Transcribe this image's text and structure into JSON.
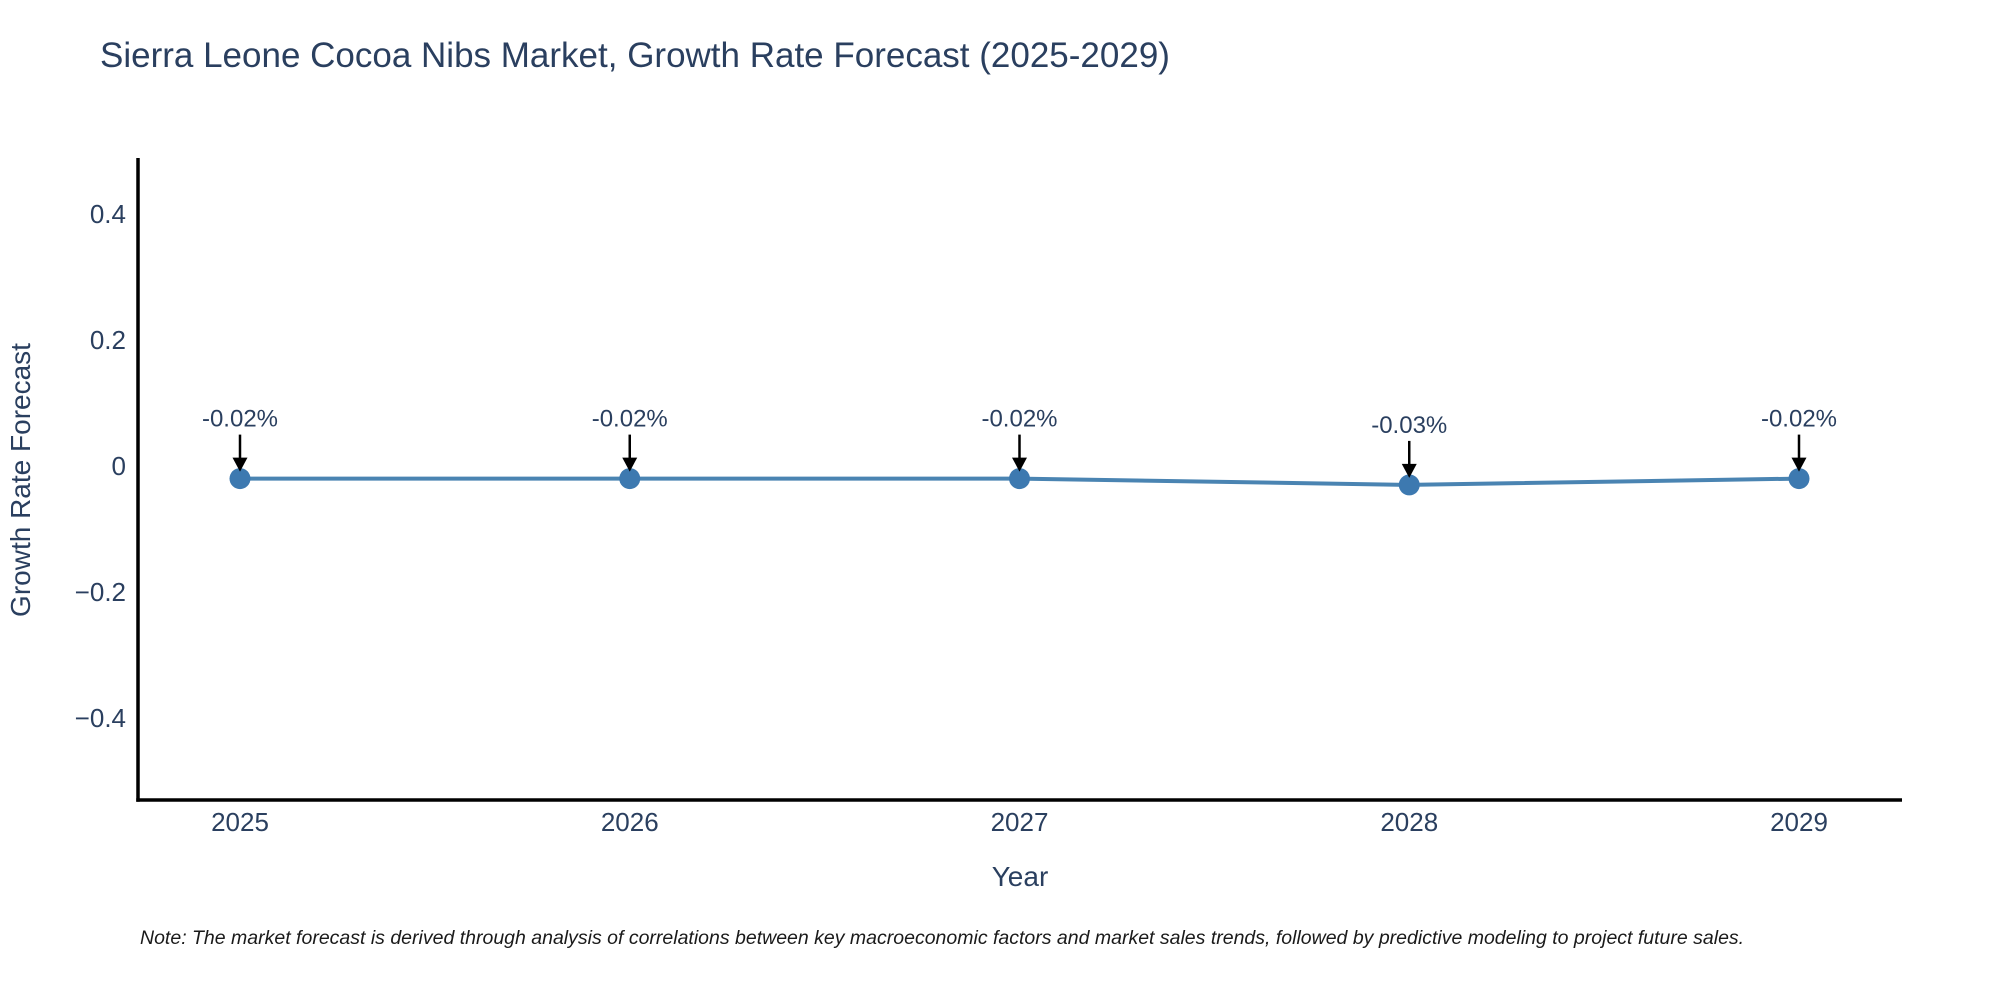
{
  "title": "Sierra Leone Cocoa Nibs Market, Growth Rate Forecast (2025-2029)",
  "note": "Note: The market forecast is derived through analysis of correlations between key macroeconomic factors and market sales trends, followed by predictive modeling to project future sales.",
  "colors": {
    "line": "#4a84b2",
    "marker": "#3d79b0",
    "axis": "#000000",
    "title_text": "#2a3f5f",
    "tick_text": "#2a3f5f",
    "annotation_text": "#2a3f5f",
    "arrow": "#000000",
    "background": "#ffffff"
  },
  "chart_data": {
    "type": "line",
    "title": "Sierra Leone Cocoa Nibs Market, Growth Rate Forecast (2025-2029)",
    "xlabel": "Year",
    "ylabel": "Growth Rate Forecast",
    "x": [
      2025,
      2026,
      2027,
      2028,
      2029
    ],
    "x_tick_labels": [
      "2025",
      "2026",
      "2027",
      "2028",
      "2029"
    ],
    "series": [
      {
        "name": "Growth Rate Forecast",
        "values": [
          -0.02,
          -0.02,
          -0.02,
          -0.03,
          -0.02
        ],
        "point_labels": [
          "-0.02%",
          "-0.02%",
          "-0.02%",
          "-0.03%",
          "-0.02%"
        ]
      }
    ],
    "y_ticks": [
      {
        "v": 0.4,
        "label": "0.4"
      },
      {
        "v": 0.2,
        "label": "0.2"
      },
      {
        "v": 0.0,
        "label": "0"
      },
      {
        "v": -0.2,
        "label": "−0.2"
      },
      {
        "v": -0.4,
        "label": "−0.4"
      }
    ],
    "ylim": [
      -0.53,
      0.49
    ],
    "grid": false,
    "legend": "none",
    "annotation_style": "black arrow pointing down to each marker"
  }
}
